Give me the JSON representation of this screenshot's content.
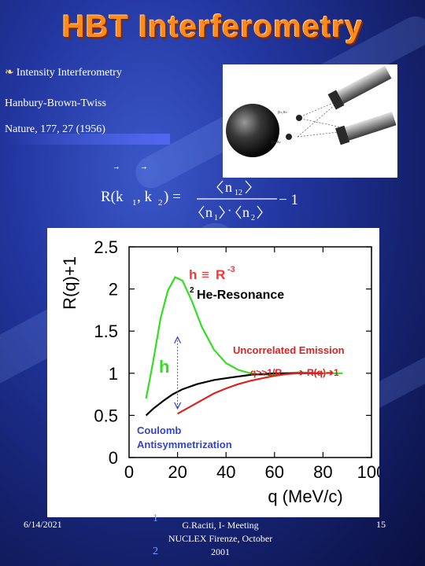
{
  "slide": {
    "title": "HBT Interferometry",
    "bullet_icon": "feather-icon",
    "bullet_text": "Intensity Interferometry",
    "line2": "Hanbury-Brown-Twiss",
    "line3": "Nature, 177, 27 (1956)"
  },
  "formula": {
    "lhs": "R(k",
    "sub1": "1",
    "comma": ", k",
    "sub2": "2",
    "close": ") =",
    "numer": "n",
    "numer_sub": "12",
    "den_a": "n",
    "den_a_sub": "1",
    "dot": "·",
    "den_b": "n",
    "den_b_sub": "2",
    "minus": "− 1"
  },
  "chart_data": {
    "type": "line",
    "ylabel": "R(q)+1",
    "xlabel": "q (MeV/c)",
    "xlim": [
      0,
      100
    ],
    "ylim": [
      0,
      2.5
    ],
    "xticks": [
      "20",
      "40",
      "60",
      "80",
      "100"
    ],
    "yticks": [
      "0",
      "0.5",
      "1",
      "1.5",
      "2",
      "2.5"
    ],
    "x0_label": "0",
    "series": [
      {
        "color": "#33dd22",
        "points": [
          [
            7,
            0.7
          ],
          [
            10,
            1.15
          ],
          [
            13,
            1.65
          ],
          [
            16,
            1.98
          ],
          [
            19,
            2.14
          ],
          [
            22,
            2.1
          ],
          [
            26,
            1.85
          ],
          [
            30,
            1.55
          ],
          [
            35,
            1.28
          ],
          [
            40,
            1.12
          ],
          [
            45,
            1.04
          ],
          [
            50,
            1.0
          ],
          [
            55,
            0.98
          ],
          [
            60,
            0.99
          ],
          [
            70,
            1.01
          ],
          [
            80,
            1.0
          ],
          [
            88,
            1.0
          ]
        ]
      },
      {
        "color": "#000000",
        "points": [
          [
            7,
            0.5
          ],
          [
            10,
            0.58
          ],
          [
            14,
            0.67
          ],
          [
            18,
            0.75
          ],
          [
            22,
            0.81
          ],
          [
            28,
            0.87
          ],
          [
            35,
            0.92
          ],
          [
            42,
            0.95
          ],
          [
            50,
            0.98
          ],
          [
            60,
            1.0
          ],
          [
            70,
            1.0
          ],
          [
            80,
            1.0
          ]
        ]
      },
      {
        "color": "#dd2222",
        "points": [
          [
            20,
            0.52
          ],
          [
            25,
            0.6
          ],
          [
            30,
            0.68
          ],
          [
            35,
            0.76
          ],
          [
            40,
            0.82
          ],
          [
            45,
            0.87
          ],
          [
            50,
            0.91
          ],
          [
            55,
            0.94
          ],
          [
            60,
            0.97
          ],
          [
            65,
            0.99
          ],
          [
            70,
            1.0
          ],
          [
            80,
            1.0
          ]
        ]
      }
    ],
    "annotations": {
      "eta_def_pre": "h",
      "eta_def_equiv": "≡",
      "eta_def_post": "R",
      "eta_def_exp": "-3",
      "resonance_pre": "2",
      "resonance": "He-Resonance",
      "uncorrelated": "Uncorrelated Emission",
      "q_cond_pre": "q>>1/R",
      "q_arrow": "➔",
      "q_cond_post": "R(q)➔1",
      "eta_symbol": "h",
      "coulomb": "Coulomb",
      "antisym": "Antisymmetrization"
    }
  },
  "footer": {
    "date": "6/14/2021",
    "fragment_top": "1",
    "fragment_bottom": "2",
    "center_line1": "G.Raciti, I- Meeting",
    "center_line2": "NUCLEX Firenze, October",
    "center_line3": "2001",
    "page": "15"
  }
}
